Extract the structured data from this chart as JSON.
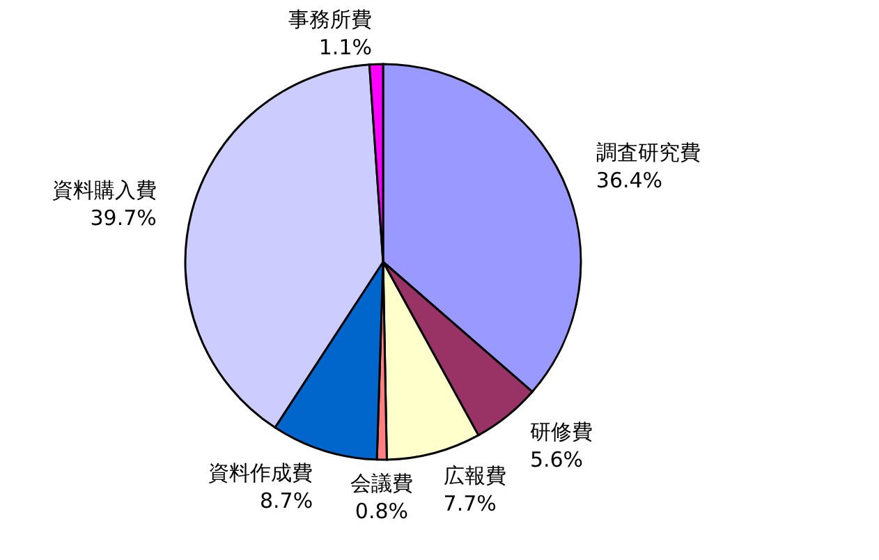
{
  "chart_data": {
    "type": "pie",
    "categories": [
      "調査研究費",
      "研修費",
      "広報費",
      "会議費",
      "資料作成費",
      "資料購入費",
      "事務所費"
    ],
    "values": [
      36.4,
      5.6,
      7.7,
      0.8,
      8.7,
      39.7,
      1.1
    ],
    "value_labels": [
      "36.4%",
      "5.6%",
      "7.7%",
      "0.8%",
      "8.7%",
      "39.7%",
      "1.1%"
    ],
    "colors": [
      "#9999ff",
      "#993366",
      "#ffffcc",
      "#ff8080",
      "#0066cc",
      "#ccccff",
      "#ff00ff"
    ]
  }
}
